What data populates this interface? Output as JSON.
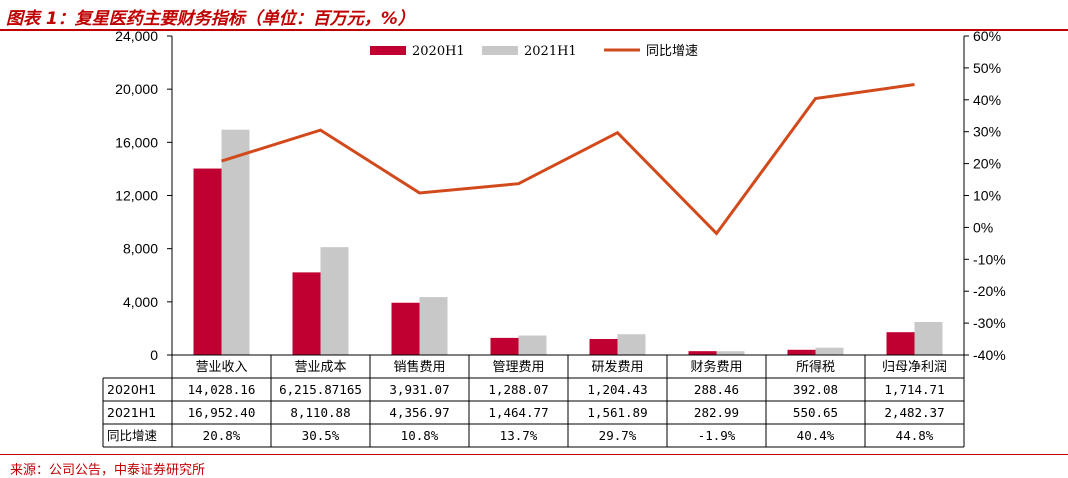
{
  "title": "图表 1：复星医药主要财务指标（单位：百万元，%）",
  "source": "来源：公司公告，中泰证券研究所",
  "chart_data": {
    "type": "bar",
    "categories": [
      "营业收入",
      "营业成本",
      "销售费用",
      "管理费用",
      "研发费用",
      "财务费用",
      "所得税",
      "归母净利润"
    ],
    "series": [
      {
        "name": "2020H1",
        "kind": "bar",
        "axis": "left",
        "color": "#c00030",
        "values": [
          14028.16,
          6215.87165,
          3931.07,
          1288.07,
          1204.43,
          288.46,
          392.08,
          1714.71
        ],
        "labels": [
          "14,028.16",
          "6,215.87165",
          "3,931.07",
          "1,288.07",
          "1,204.43",
          "288.46",
          "392.08",
          "1,714.71"
        ]
      },
      {
        "name": "2021H1",
        "kind": "bar",
        "axis": "left",
        "color": "#c8c8c8",
        "values": [
          16952.4,
          8110.88,
          4356.97,
          1464.77,
          1561.89,
          282.99,
          550.65,
          2482.37
        ],
        "labels": [
          "16,952.40",
          "8,110.88",
          "4,356.97",
          "1,464.77",
          "1,561.89",
          "282.99",
          "550.65",
          "2,482.37"
        ]
      },
      {
        "name": "同比增速",
        "kind": "line",
        "axis": "right",
        "color": "#d24a1c",
        "values": [
          20.8,
          30.5,
          10.8,
          13.7,
          29.7,
          -1.9,
          40.4,
          44.8
        ],
        "labels": [
          "20.8%",
          "30.5%",
          "10.8%",
          "13.7%",
          "29.7%",
          "-1.9%",
          "40.4%",
          "44.8%"
        ]
      }
    ],
    "ylim": [
      0,
      24000
    ],
    "yticks": [
      "0",
      "4,000",
      "8,000",
      "12,000",
      "16,000",
      "20,000",
      "24,000"
    ],
    "y2lim": [
      -40,
      60
    ],
    "y2ticks": [
      "-40%",
      "-30%",
      "-20%",
      "-10%",
      "0%",
      "10%",
      "20%",
      "30%",
      "40%",
      "50%",
      "60%"
    ],
    "legend": "top",
    "grid": false,
    "data_table": true
  }
}
